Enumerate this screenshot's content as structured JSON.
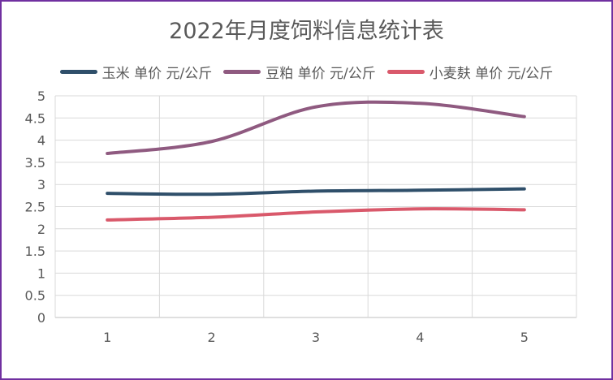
{
  "chart_data": {
    "type": "line",
    "title": "2022年月度饲料信息统计表",
    "x": [
      1,
      2,
      3,
      4,
      5
    ],
    "ylim": [
      0,
      5
    ],
    "yticks": [
      0,
      0.5,
      1,
      1.5,
      2,
      2.5,
      3,
      3.5,
      4,
      4.5,
      5
    ],
    "grid": true,
    "legend_position": "top",
    "smooth": true,
    "series": [
      {
        "name": "玉米 单价 元/公斤",
        "color": "#2f4f6a",
        "values": [
          2.8,
          2.78,
          2.85,
          2.87,
          2.9
        ]
      },
      {
        "name": "豆粕 单价 元/公斤",
        "color": "#8f5a80",
        "values": [
          3.7,
          3.97,
          4.75,
          4.83,
          4.53
        ]
      },
      {
        "name": "小麦麸 单价 元/公斤",
        "color": "#d9596b",
        "values": [
          2.2,
          2.26,
          2.38,
          2.45,
          2.43
        ]
      }
    ]
  }
}
